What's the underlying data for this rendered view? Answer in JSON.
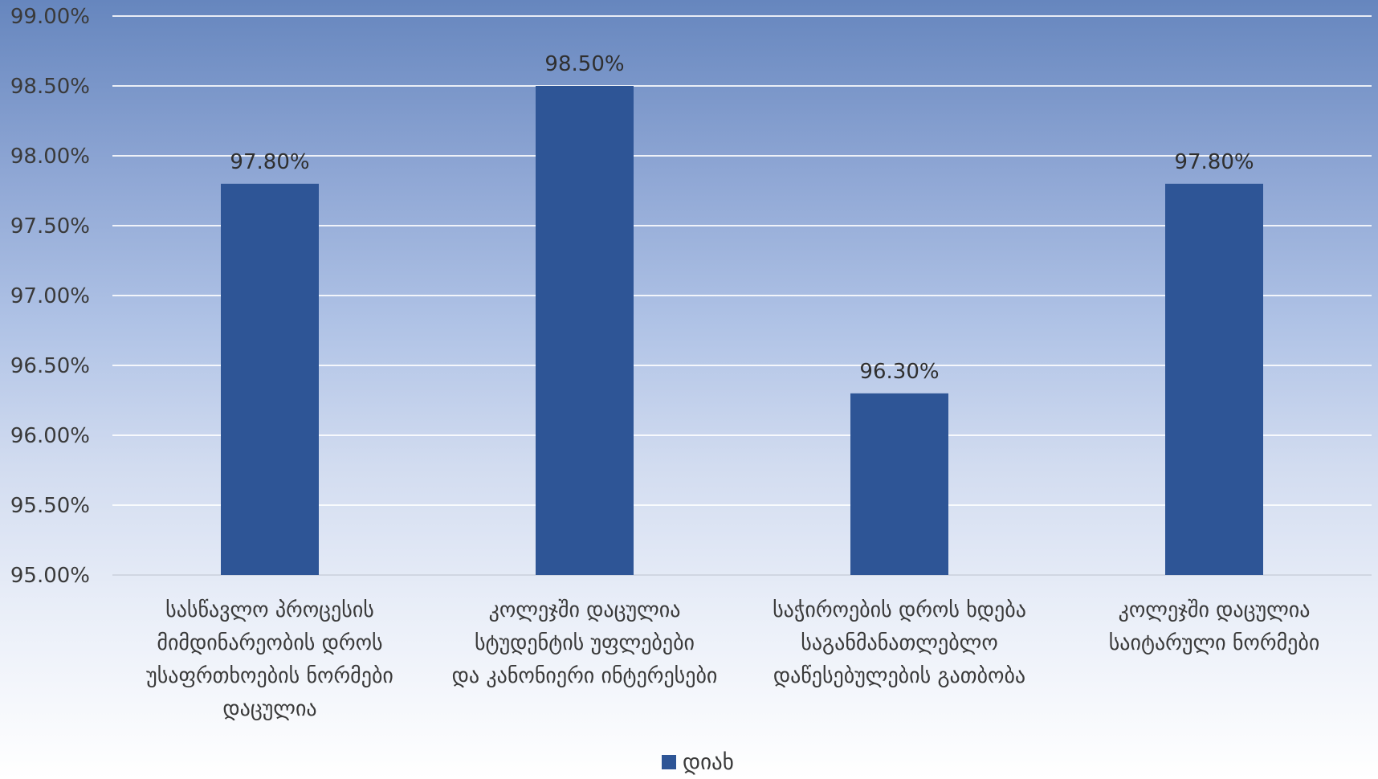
{
  "chart_data": {
    "type": "bar",
    "categories": [
      [
        "სასწავლო პროცესის",
        "მიმდინარეობის დროს",
        "უსაფრთხოების ნორმები",
        "დაცულია"
      ],
      [
        "კოლეჯში დაცულია",
        "სტუდენტის  უფლებები",
        "და კანონიერი ინტერესები"
      ],
      [
        "საჭიროების დროს ხდება",
        "საგანმანათლებლო",
        "დაწესებულების გათბობა"
      ],
      [
        "კოლეჯში დაცულია",
        "საიტარული ნორმები"
      ]
    ],
    "series": [
      {
        "name": "დიახ",
        "values": [
          97.8,
          98.5,
          96.3,
          97.8
        ],
        "labels": [
          "97.80%",
          "98.50%",
          "96.30%",
          "97.80%"
        ],
        "color": "#2e5596"
      }
    ],
    "y_ticks": [
      "95.00%",
      "95.50%",
      "96.00%",
      "96.50%",
      "97.00%",
      "97.50%",
      "98.00%",
      "98.50%",
      "99.00%"
    ],
    "ylim": [
      95,
      99
    ],
    "grid": true,
    "legend_position": "bottom"
  }
}
